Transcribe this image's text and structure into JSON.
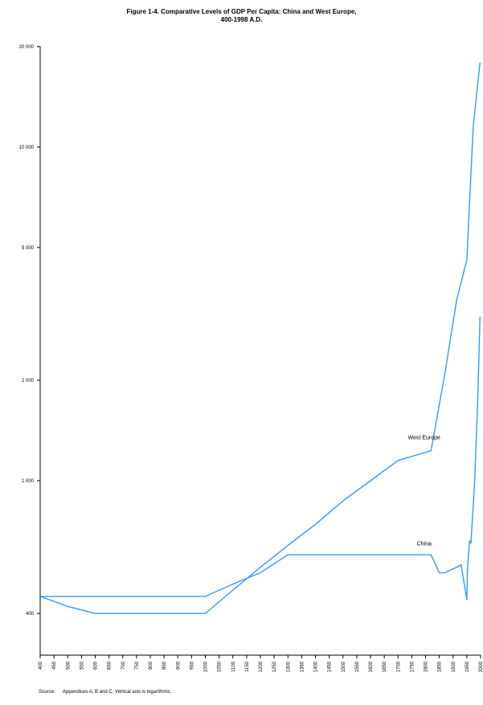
{
  "figure": {
    "title_line1": "Figure 1-4. Comparative Levels of GDP Per Capita: China and West Europe,",
    "title_line2": "400-1998 A.D.",
    "source_label": "Source:",
    "source_text": "Appendices A, B and C. Vertical axis is logarithmic."
  },
  "colors": {
    "axis": "#000000",
    "series": "#3399ff"
  },
  "chart_data": {
    "type": "line",
    "title": "Figure 1-4. Comparative Levels of GDP Per Capita: China and West Europe, 400-1998 A.D.",
    "xlabel": "",
    "ylabel": "",
    "yscale": "log",
    "ylim": [
      300,
      20000
    ],
    "xlim": [
      400,
      2000
    ],
    "yticks": [
      400,
      1000,
      2000,
      5000,
      10000,
      20000
    ],
    "ytick_labels": [
      "400",
      "1 000",
      "2 000",
      "5 000",
      "10 000",
      "20 000"
    ],
    "xticks": [
      400,
      450,
      500,
      550,
      600,
      650,
      700,
      750,
      800,
      850,
      900,
      950,
      1000,
      1050,
      1100,
      1150,
      1200,
      1250,
      1300,
      1350,
      1400,
      1450,
      1500,
      1550,
      1600,
      1650,
      1700,
      1750,
      1800,
      1850,
      1900,
      1950,
      2000
    ],
    "grid": false,
    "series": [
      {
        "name": "West Europe",
        "x": [
          400,
          500,
          600,
          700,
          800,
          900,
          1000,
          1100,
          1200,
          1300,
          1400,
          1500,
          1600,
          1700,
          1820,
          1870,
          1913,
          1950,
          1973,
          1998
        ],
        "y": [
          450,
          420,
          400,
          400,
          400,
          400,
          400,
          470,
          550,
          640,
          740,
          870,
          1000,
          1150,
          1230,
          2090,
          3480,
          4590,
          11500,
          17900
        ]
      },
      {
        "name": "China",
        "x": [
          400,
          500,
          600,
          700,
          800,
          900,
          1000,
          1100,
          1200,
          1300,
          1400,
          1500,
          1600,
          1700,
          1820,
          1850,
          1870,
          1890,
          1913,
          1929,
          1950,
          1952,
          1960,
          1965,
          1973,
          1978,
          1990,
          1998
        ],
        "y": [
          450,
          450,
          450,
          450,
          450,
          450,
          450,
          490,
          530,
          600,
          600,
          600,
          600,
          600,
          600,
          530,
          530,
          540,
          550,
          560,
          440,
          540,
          660,
          650,
          840,
          980,
          1800,
          3100
        ]
      }
    ],
    "annotations": [
      {
        "text": "West Europe",
        "x": 1795,
        "y": 1330
      },
      {
        "text": "China",
        "x": 1795,
        "y": 640
      }
    ]
  }
}
